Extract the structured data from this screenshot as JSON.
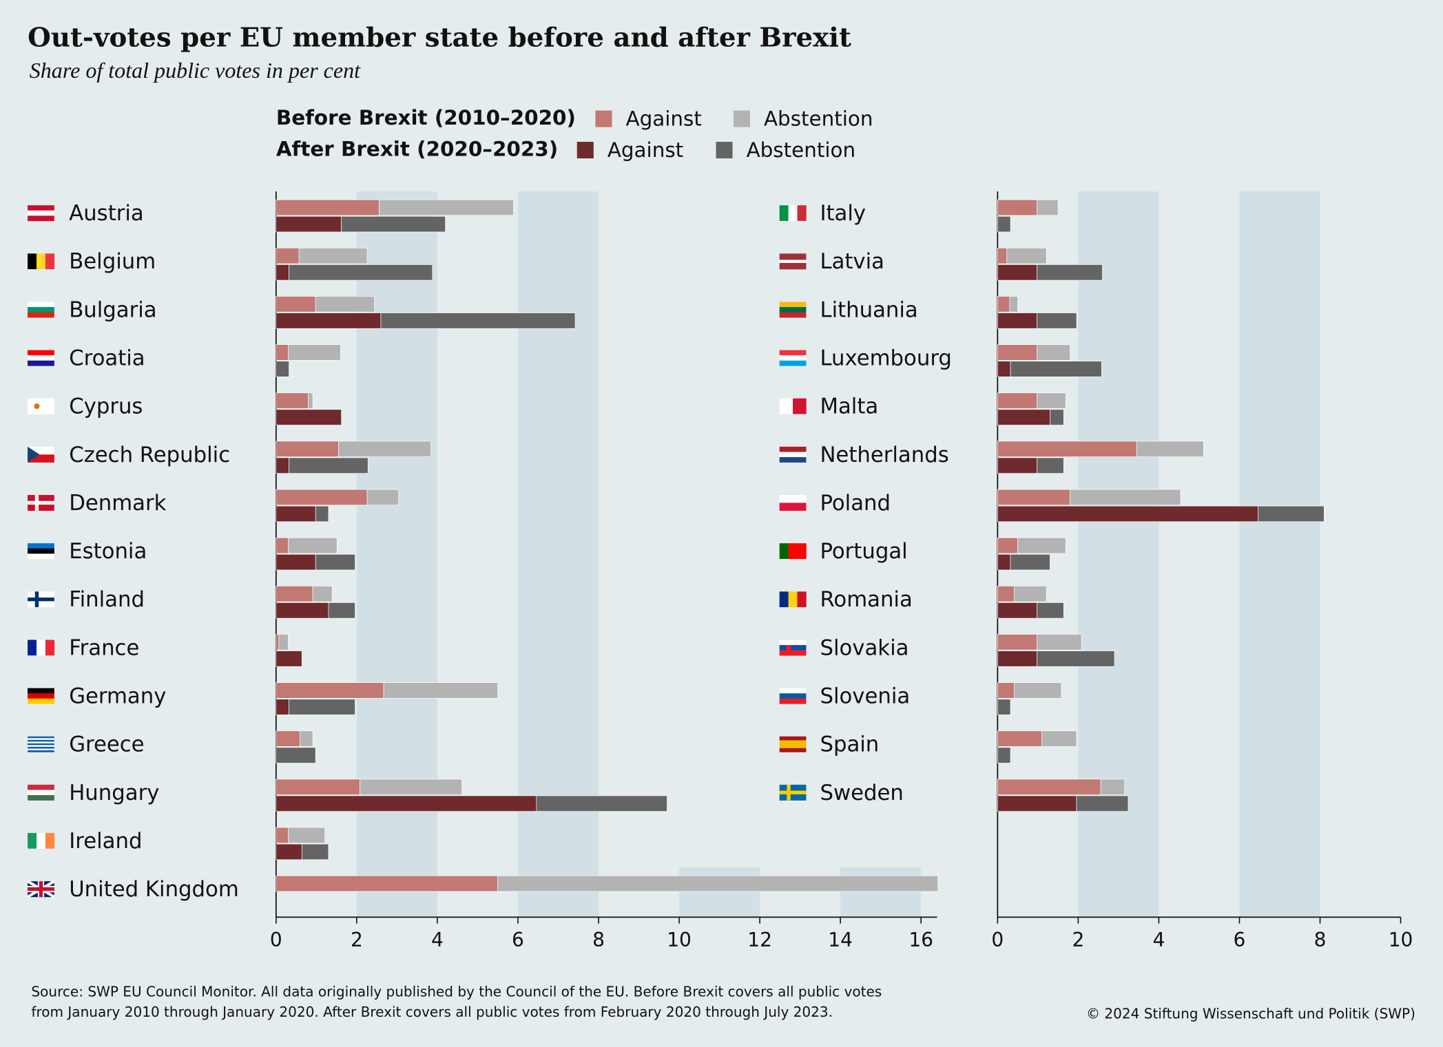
{
  "chart_data": [
    {
      "type": "bar",
      "title": "Out-votes per EU member state before and after Brexit",
      "subtitle": "Share of total public votes in per cent",
      "groups": [
        "Before Brexit (2010–2020)",
        "After Brexit (2020–2023)"
      ],
      "source": [
        "Source: SWP EU Council Monitor. All data originally published by the Council of the EU. Before Brexit covers all public votes",
        "from January 2010 through January 2020. After Brexit covers all public votes from February 2020 through July 2023."
      ],
      "copyright": "© 2024 Stiftung Wissenschaft und Politik (SWP)",
      "categories": [
        "Austria",
        "Belgium",
        "Bulgaria",
        "Croatia",
        "Cyprus",
        "Czech Republic",
        "Denmark",
        "Estonia",
        "Finland",
        "France",
        "Germany",
        "Greece",
        "Hungary",
        "Ireland",
        "United Kingdom"
      ],
      "series": [
        {
          "name": "Against",
          "color": "#c27873",
          "values": [
            2.56,
            0.57,
            0.98,
            0.3,
            0.8,
            1.55,
            2.26,
            0.3,
            0.91,
            0.07,
            2.67,
            0.59,
            2.08,
            0.3,
            5.5
          ]
        },
        {
          "name": "Abstention",
          "color": "#b3b3b3",
          "values": [
            3.33,
            1.69,
            1.46,
            1.3,
            0.11,
            2.29,
            0.78,
            1.21,
            0.48,
            0.23,
            2.83,
            0.32,
            2.53,
            0.91,
            10.92
          ]
        },
        {
          "name": "Against",
          "color": "#6e2a2c",
          "values": [
            1.62,
            0.32,
            2.6,
            0,
            1.62,
            0.32,
            0.98,
            0.98,
            1.3,
            0.64,
            0.32,
            0,
            6.46,
            0.64,
            null
          ]
        },
        {
          "name": "Abstention",
          "color": "#646464",
          "values": [
            2.58,
            3.56,
            4.82,
            0.32,
            0,
            1.96,
            0.32,
            0.98,
            0.66,
            0,
            1.64,
            0.98,
            3.24,
            0.66,
            null
          ]
        }
      ],
      "xlim": [
        0,
        16.4
      ],
      "xticks": [
        0,
        2,
        4,
        6,
        8,
        10,
        12,
        14,
        16
      ]
    },
    {
      "type": "bar",
      "categories": [
        "Italy",
        "Latvia",
        "Lithuania",
        "Luxembourg",
        "Malta",
        "Netherlands",
        "Poland",
        "Portugal",
        "Romania",
        "Slovakia",
        "Slovenia",
        "Spain",
        "Sweden"
      ],
      "series": [
        {
          "color": "#c27873",
          "values": [
            0.98,
            0.23,
            0.3,
            0.98,
            0.98,
            3.45,
            1.8,
            0.5,
            0.41,
            0.98,
            0.41,
            1.1,
            2.56
          ]
        },
        {
          "color": "#b3b3b3",
          "values": [
            0.52,
            0.98,
            0.2,
            0.82,
            0.71,
            1.66,
            2.74,
            1.19,
            0.8,
            1.1,
            1.17,
            0.86,
            0.59
          ]
        },
        {
          "color": "#6e2a2c",
          "values": [
            0,
            0.98,
            0.98,
            0.32,
            1.3,
            0.98,
            6.46,
            0.32,
            0.98,
            0.98,
            0,
            0,
            1.96
          ]
        },
        {
          "color": "#646464",
          "values": [
            0.32,
            1.62,
            0.98,
            2.26,
            0.34,
            0.66,
            1.64,
            0.98,
            0.66,
            1.92,
            0.32,
            0.32,
            1.28
          ]
        }
      ],
      "xlim": [
        0,
        10
      ],
      "xticks": [
        0,
        2,
        4,
        6,
        8,
        10
      ]
    }
  ]
}
